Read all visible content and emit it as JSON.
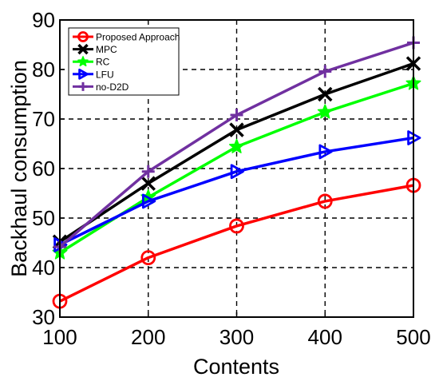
{
  "chart_data": {
    "type": "line",
    "title": "",
    "xlabel": "Contents",
    "ylabel": "Backhaul consumption",
    "xlim": [
      100,
      500
    ],
    "ylim": [
      30,
      90
    ],
    "xticks": [
      100,
      200,
      300,
      400,
      500
    ],
    "yticks": [
      30,
      40,
      50,
      60,
      70,
      80,
      90
    ],
    "grid": true,
    "legend_position": "top-left",
    "x": [
      100,
      200,
      300,
      400,
      500
    ],
    "series": [
      {
        "name": "Proposed Approach",
        "values": [
          33.2,
          42.0,
          48.4,
          53.4,
          56.6
        ],
        "color": "#ff0000",
        "marker": "circle"
      },
      {
        "name": "MPC",
        "values": [
          45.2,
          57.0,
          67.8,
          75.0,
          81.2
        ],
        "color": "#000000",
        "marker": "x"
      },
      {
        "name": "RC",
        "values": [
          43.0,
          54.2,
          64.4,
          71.4,
          77.2
        ],
        "color": "#00ff00",
        "marker": "star"
      },
      {
        "name": "LFU",
        "values": [
          44.6,
          53.4,
          59.4,
          63.4,
          66.2
        ],
        "color": "#0000ff",
        "marker": "triangle-right"
      },
      {
        "name": "no-D2D",
        "values": [
          44.2,
          59.4,
          70.8,
          79.6,
          85.4
        ],
        "color": "#7030a0",
        "marker": "plus"
      }
    ]
  }
}
